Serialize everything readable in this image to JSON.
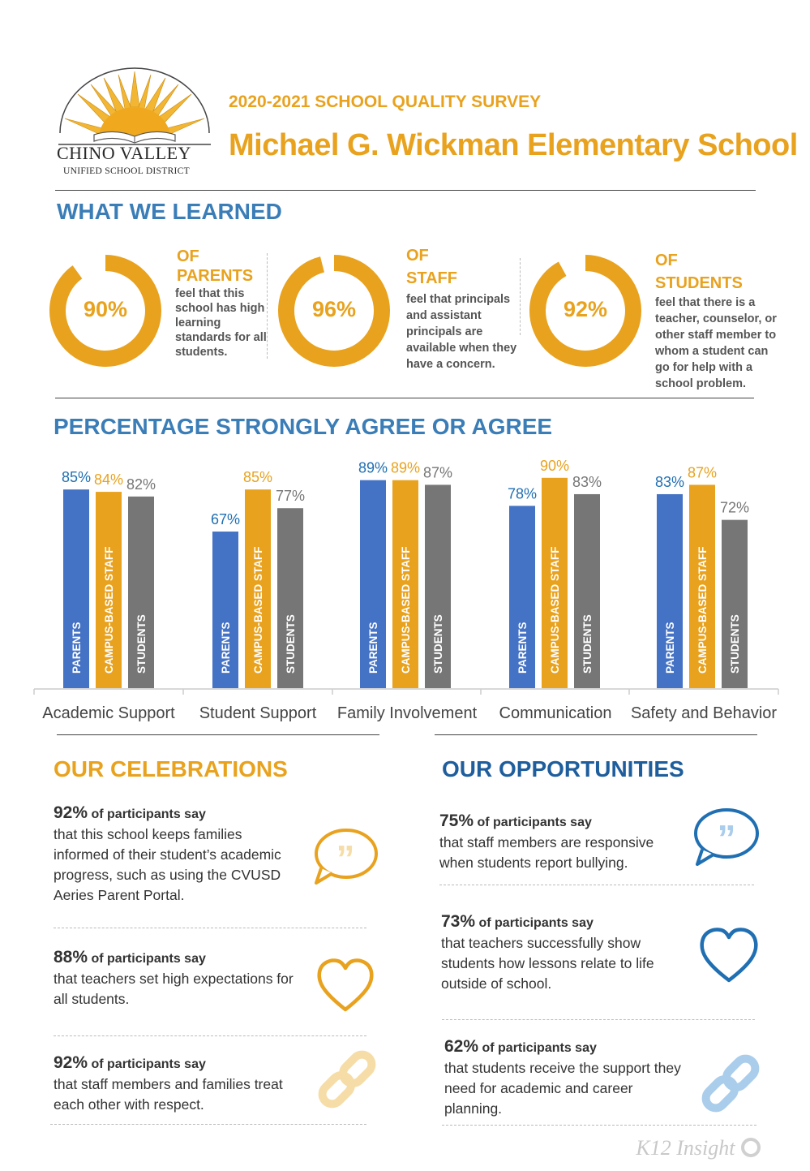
{
  "header": {
    "logo_line1": "CHINO VALLEY",
    "logo_line2": "UNIFIED SCHOOL DISTRICT",
    "survey_title": "2020-2021 SCHOOL QUALITY SURVEY",
    "school_name": "Michael G. Wickman Elementary School"
  },
  "learned": {
    "title": "WHAT WE LEARNED",
    "items": [
      {
        "pct": "90%",
        "value": 90,
        "of": "OF",
        "group": "PARENTS",
        "desc": "feel that this school has high learning standards for all students."
      },
      {
        "pct": "96%",
        "value": 96,
        "of": "OF",
        "group": "STAFF",
        "desc": "feel that principals and assistant principals are available when they have a concern."
      },
      {
        "pct": "92%",
        "value": 92,
        "of": "OF",
        "group": "STUDENTS",
        "desc": "feel that there is a teacher, counselor, or other staff member to whom a student can go for help with a school problem."
      }
    ]
  },
  "chart_data": {
    "type": "bar",
    "title": "PERCENTAGE STRONGLY AGREE OR AGREE",
    "categories": [
      "Academic Support",
      "Student Support",
      "Family Involvement",
      "Communication",
      "Safety and Behavior"
    ],
    "series": [
      {
        "name": "PARENTS",
        "color": "#4472C4",
        "label_color": "#1F6FB2",
        "values": [
          85,
          67,
          89,
          78,
          83
        ]
      },
      {
        "name": "CAMPUS-BASED STAFF",
        "color": "#E8A21E",
        "label_color": "#E8A21E",
        "values": [
          84,
          85,
          89,
          90,
          87
        ]
      },
      {
        "name": "STUDENTS",
        "color": "#767676",
        "label_color": "#767676",
        "values": [
          82,
          77,
          87,
          83,
          72
        ]
      }
    ],
    "ylim": [
      0,
      100
    ],
    "grid": false,
    "legend": "none"
  },
  "celebrations": {
    "title": "OUR CELEBRATIONS",
    "items": [
      {
        "pct": "92%",
        "lead": "of participants say",
        "body": "that this school keeps families informed of their student’s academic progress, such as using the CVUSD Aeries Parent Portal.",
        "icon": "speech-bubble-icon"
      },
      {
        "pct": "88%",
        "lead": "of participants say",
        "body": "that teachers set high expectations for all students.",
        "icon": "heart-icon"
      },
      {
        "pct": "92%",
        "lead": "of participants say",
        "body": "that staff members and families treat each other with respect.",
        "icon": "link-icon"
      }
    ]
  },
  "opportunities": {
    "title": "OUR OPPORTUNITIES",
    "items": [
      {
        "pct": "75%",
        "lead": "of participants say",
        "body": "that staff members are responsive when students report bullying.",
        "icon": "speech-bubble-icon"
      },
      {
        "pct": "73%",
        "lead": "of participants say",
        "body": "that teachers successfully show students how lessons relate to life outside of school.",
        "icon": "heart-icon"
      },
      {
        "pct": "62%",
        "lead": "of participants say",
        "body": "that students receive the support they need for academic and career planning.",
        "icon": "link-icon"
      }
    ]
  },
  "footer": {
    "brand": "K12 Insight"
  },
  "colors": {
    "gold": "#E8A21E",
    "blue": "#3A7DB7",
    "navy": "#1F5E9C",
    "light_blue": "#A9CDEB",
    "light_gold": "#F6DDA8"
  }
}
